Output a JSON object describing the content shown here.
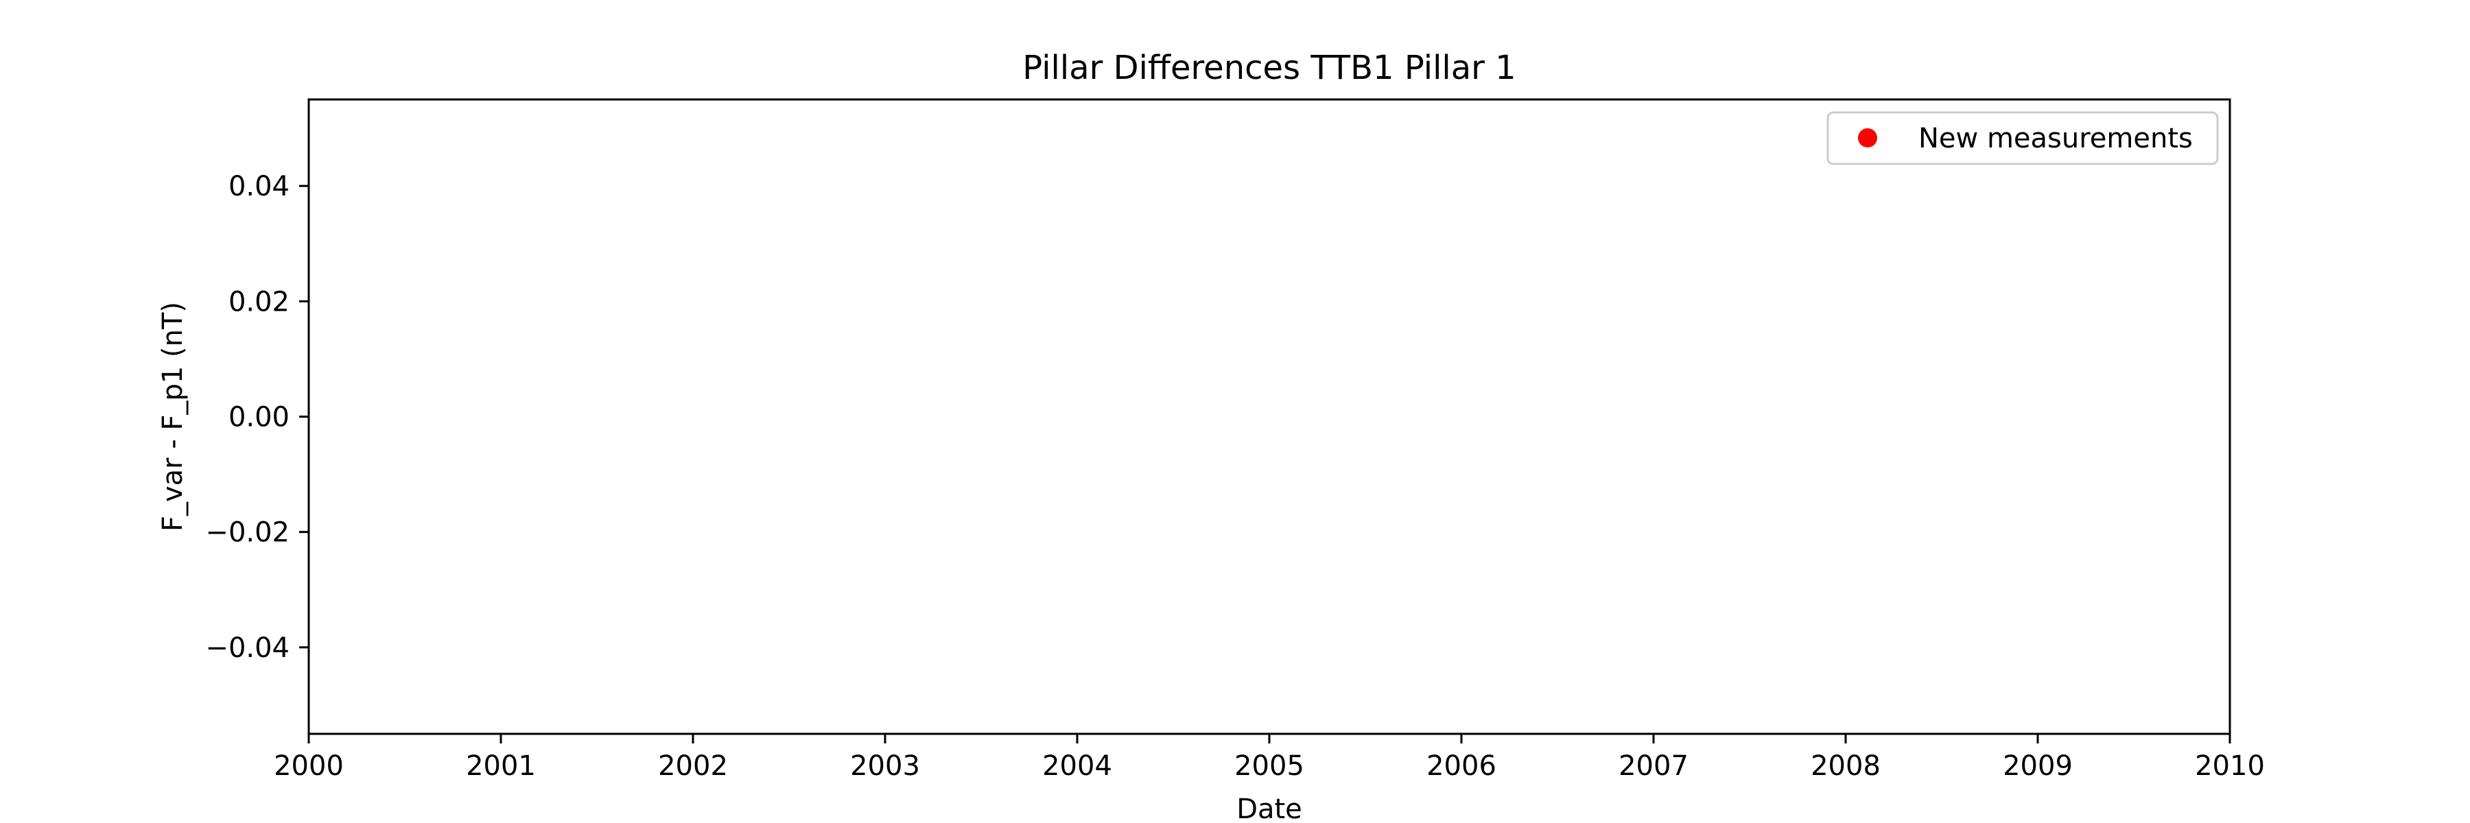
{
  "chart_data": {
    "type": "scatter",
    "title": "Pillar Differences TTB1 Pillar 1",
    "xlabel": "Date",
    "ylabel": "F_var - F_p1 (nT)",
    "xlim": [
      2000,
      2010
    ],
    "ylim": [
      -0.055,
      0.055
    ],
    "x_ticks": [
      "2000",
      "2001",
      "2002",
      "2003",
      "2004",
      "2005",
      "2006",
      "2007",
      "2008",
      "2009",
      "2010"
    ],
    "y_ticks": [
      {
        "value": 0.04,
        "label": "0.04"
      },
      {
        "value": 0.02,
        "label": "0.02"
      },
      {
        "value": 0.0,
        "label": "0.00"
      },
      {
        "value": -0.02,
        "label": "−0.02"
      },
      {
        "value": -0.04,
        "label": "−0.04"
      }
    ],
    "grid": false,
    "legend_position": "top-right",
    "series": [
      {
        "name": "New measurements",
        "color": "#ff0000",
        "marker": "circle",
        "points": []
      }
    ]
  }
}
